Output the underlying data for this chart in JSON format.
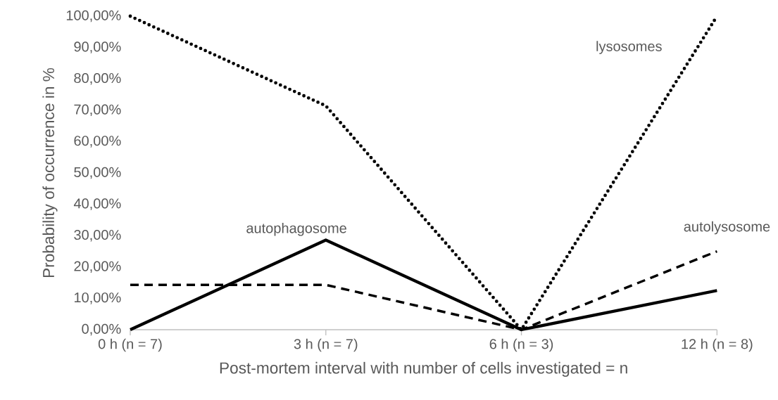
{
  "chart_data": {
    "type": "line",
    "xlabel": "Post-mortem interval with number of cells investigated = n",
    "ylabel": "Probability of occurrence in %",
    "categories": [
      "0 h (n = 7)",
      "3 h (n = 7)",
      "6 h (n = 3)",
      "12 h (n = 8)"
    ],
    "series": [
      {
        "name": "lysosomes",
        "color": "#000000",
        "line_style": "dotted",
        "values": [
          100,
          71.4,
          0,
          100
        ]
      },
      {
        "name": "autophagosome",
        "color": "#000000",
        "line_style": "solid",
        "values": [
          0,
          28.6,
          0,
          12.5
        ]
      },
      {
        "name": "autolysosome",
        "color": "#000000",
        "line_style": "dashed",
        "values": [
          14.3,
          14.3,
          0,
          25
        ]
      }
    ],
    "ylim": [
      0,
      100
    ],
    "yticks": [
      {
        "value": 0,
        "label": "0,00%"
      },
      {
        "value": 10,
        "label": "10,00%"
      },
      {
        "value": 20,
        "label": "20,00%"
      },
      {
        "value": 30,
        "label": "30,00%"
      },
      {
        "value": 40,
        "label": "40,00%"
      },
      {
        "value": 50,
        "label": "50,00%"
      },
      {
        "value": 60,
        "label": "60,00%"
      },
      {
        "value": 70,
        "label": "70,00%"
      },
      {
        "value": 80,
        "label": "80,00%"
      },
      {
        "value": 90,
        "label": "90,00%"
      },
      {
        "value": 100,
        "label": "100,00%"
      }
    ],
    "grid": false,
    "marker": "none"
  }
}
